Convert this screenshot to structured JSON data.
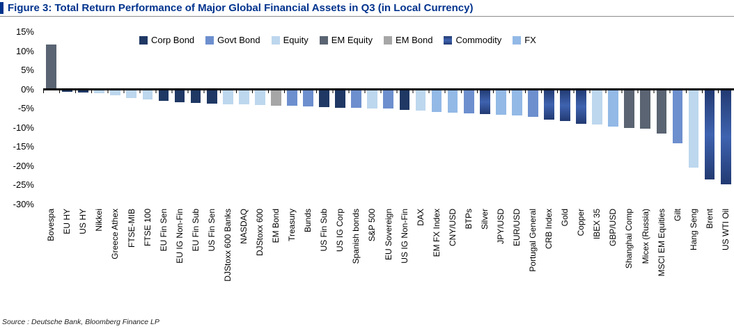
{
  "figure": {
    "title": "Figure 3: Total Return Performance of Major Global Financial Assets in Q3 (in Local Currency)",
    "source": "Source : Deutsche Bank, Bloomberg Finance LP"
  },
  "colors": {
    "title_blue": "#00338d",
    "axis_black": "#000000",
    "corp": "#1f3864",
    "govt": "#6d8fce",
    "equity": "#bdd7ee",
    "em_equity": "#5a6472",
    "em_bond": "#a6a6a6",
    "commodity": "#223a72",
    "commodity_light": "#3f63b0",
    "fx": "#93b9e6"
  },
  "chart_data": {
    "type": "bar",
    "title": "Total Return Performance of Major Global Financial Assets in Q3 (in Local Currency)",
    "xlabel": "",
    "ylabel": "",
    "ylim": [
      -30,
      15
    ],
    "grid": false,
    "legend_position": "top",
    "y_ticks": [
      "15%",
      "10%",
      "5%",
      "0%",
      "-5%",
      "-10%",
      "-15%",
      "-20%",
      "-25%",
      "-30%"
    ],
    "legend": [
      {
        "label": "Corp Bond",
        "key": "corp"
      },
      {
        "label": "Govt Bond",
        "key": "govt"
      },
      {
        "label": "Equity",
        "key": "equity"
      },
      {
        "label": "EM Equity",
        "key": "em_equity"
      },
      {
        "label": "EM Bond",
        "key": "em_bond"
      },
      {
        "label": "Commodity",
        "key": "commodity"
      },
      {
        "label": "FX",
        "key": "fx"
      }
    ],
    "bars": [
      {
        "label": "Bovespa",
        "value": 11.7,
        "cat": "em_equity"
      },
      {
        "label": "EU HY",
        "value": -0.6,
        "cat": "corp"
      },
      {
        "label": "US HY",
        "value": -0.8,
        "cat": "corp"
      },
      {
        "label": "Nikkei",
        "value": -0.9,
        "cat": "equity"
      },
      {
        "label": "Greece Athex",
        "value": -1.6,
        "cat": "equity"
      },
      {
        "label": "FTSE-MIB",
        "value": -2.3,
        "cat": "equity"
      },
      {
        "label": "FTSE 100",
        "value": -2.6,
        "cat": "equity"
      },
      {
        "label": "EU Fin Sen",
        "value": -3.0,
        "cat": "corp"
      },
      {
        "label": "EU IG Non-Fin",
        "value": -3.3,
        "cat": "corp"
      },
      {
        "label": "EU Fin Sub",
        "value": -3.5,
        "cat": "corp"
      },
      {
        "label": "US Fin Sen",
        "value": -3.7,
        "cat": "corp"
      },
      {
        "label": "DJStoxx 600 Banks",
        "value": -3.8,
        "cat": "equity"
      },
      {
        "label": "NASDAQ",
        "value": -3.9,
        "cat": "equity"
      },
      {
        "label": "DJStoxx 600",
        "value": -4.1,
        "cat": "equity"
      },
      {
        "label": "EM Bond",
        "value": -4.2,
        "cat": "em_bond"
      },
      {
        "label": "Treasury",
        "value": -4.3,
        "cat": "govt"
      },
      {
        "label": "Bunds",
        "value": -4.5,
        "cat": "govt"
      },
      {
        "label": "US Fin Sub",
        "value": -4.6,
        "cat": "corp"
      },
      {
        "label": "US IG Corp",
        "value": -4.8,
        "cat": "corp"
      },
      {
        "label": "Spanish bonds",
        "value": -4.8,
        "cat": "govt"
      },
      {
        "label": "S&P 500",
        "value": -4.9,
        "cat": "equity"
      },
      {
        "label": "EU Sovereign",
        "value": -5.0,
        "cat": "govt"
      },
      {
        "label": "US IG Non-Fin",
        "value": -5.4,
        "cat": "corp"
      },
      {
        "label": "DAX",
        "value": -5.5,
        "cat": "equity"
      },
      {
        "label": "EM FX Index",
        "value": -5.8,
        "cat": "fx"
      },
      {
        "label": "CNY/USD",
        "value": -6.0,
        "cat": "fx"
      },
      {
        "label": "BTPs",
        "value": -6.2,
        "cat": "govt"
      },
      {
        "label": "Silver",
        "value": -6.4,
        "cat": "commodity"
      },
      {
        "label": "JPY/USD",
        "value": -6.6,
        "cat": "fx"
      },
      {
        "label": "EUR/USD",
        "value": -6.7,
        "cat": "fx"
      },
      {
        "label": "Portugal General",
        "value": -7.1,
        "cat": "govt"
      },
      {
        "label": "CRB Index",
        "value": -7.9,
        "cat": "commodity"
      },
      {
        "label": "Gold",
        "value": -8.2,
        "cat": "commodity"
      },
      {
        "label": "Copper",
        "value": -8.9,
        "cat": "commodity"
      },
      {
        "label": "IBEX 35",
        "value": -9.1,
        "cat": "equity"
      },
      {
        "label": "GBP/USD",
        "value": -9.6,
        "cat": "fx"
      },
      {
        "label": "Shanghai Comp",
        "value": -10.0,
        "cat": "em_equity"
      },
      {
        "label": "Micex (Russia)",
        "value": -10.3,
        "cat": "em_equity"
      },
      {
        "label": "MSCI EM Equities",
        "value": -11.5,
        "cat": "em_equity"
      },
      {
        "label": "Gilt",
        "value": -14.0,
        "cat": "govt"
      },
      {
        "label": "Hang Seng",
        "value": -20.4,
        "cat": "equity"
      },
      {
        "label": "Brent",
        "value": -23.4,
        "cat": "commodity"
      },
      {
        "label": "US WTI Oil",
        "value": -24.8,
        "cat": "commodity"
      }
    ]
  }
}
